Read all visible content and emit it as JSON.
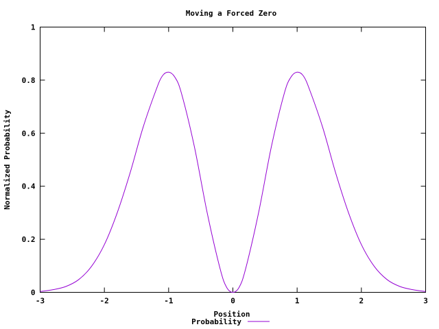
{
  "chart_data": {
    "type": "line",
    "title": "Moving a Forced Zero",
    "xlabel": "Position",
    "ylabel": "Normalized Probability",
    "xlim": [
      -3,
      3
    ],
    "ylim": [
      0,
      1
    ],
    "x_ticks": [
      "-3",
      "-2",
      "-1",
      "0",
      "1",
      "2",
      "3"
    ],
    "y_ticks": [
      "0",
      "0.2",
      "0.4",
      "0.6",
      "0.8",
      "1"
    ],
    "legend_position": "bottom-center",
    "grid": false,
    "series": [
      {
        "name": "Probability",
        "color": "#9400d3",
        "x": [
          -3.0,
          -2.8,
          -2.6,
          -2.4,
          -2.2,
          -2.0,
          -1.8,
          -1.6,
          -1.4,
          -1.2,
          -1.1,
          -1.0,
          -0.9,
          -0.8,
          -0.6,
          -0.4,
          -0.2,
          -0.1,
          0.0,
          0.1,
          0.2,
          0.4,
          0.6,
          0.8,
          0.9,
          1.0,
          1.1,
          1.2,
          1.4,
          1.6,
          1.8,
          2.0,
          2.2,
          2.4,
          2.6,
          2.8,
          3.0
        ],
        "values": [
          0.003,
          0.01,
          0.022,
          0.048,
          0.098,
          0.18,
          0.3,
          0.45,
          0.62,
          0.76,
          0.815,
          0.83,
          0.81,
          0.75,
          0.55,
          0.3,
          0.09,
          0.02,
          0.0,
          0.02,
          0.09,
          0.3,
          0.55,
          0.75,
          0.81,
          0.83,
          0.815,
          0.76,
          0.62,
          0.45,
          0.3,
          0.18,
          0.098,
          0.048,
          0.022,
          0.01,
          0.003
        ]
      }
    ]
  }
}
